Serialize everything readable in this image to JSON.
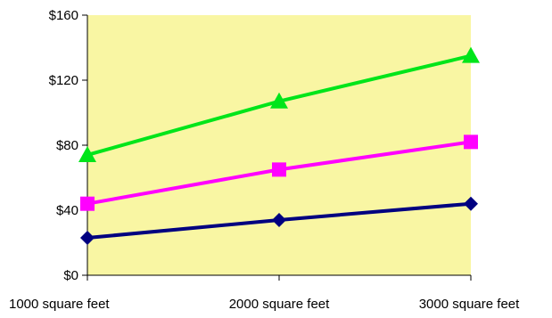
{
  "chart_data": {
    "type": "line",
    "title": "",
    "xlabel": "",
    "ylabel": "",
    "categories": [
      "1000 square feet",
      "2000 square feet",
      "3000 square feet"
    ],
    "ylim": [
      0,
      160
    ],
    "yticks": [
      0,
      40,
      80,
      120,
      160
    ],
    "ytick_labels": [
      "$0",
      "$40",
      "$80",
      "$120",
      "$160"
    ],
    "grid": false,
    "legend": "none",
    "plot_background": "#f9f6a3",
    "series": [
      {
        "color": "#00e51a",
        "marker": "triangle",
        "values": [
          74,
          107,
          135
        ]
      },
      {
        "color": "#ff00ff",
        "marker": "square",
        "values": [
          44,
          65,
          82
        ]
      },
      {
        "color": "#000080",
        "marker": "diamond",
        "values": [
          23,
          34,
          44
        ]
      }
    ]
  }
}
